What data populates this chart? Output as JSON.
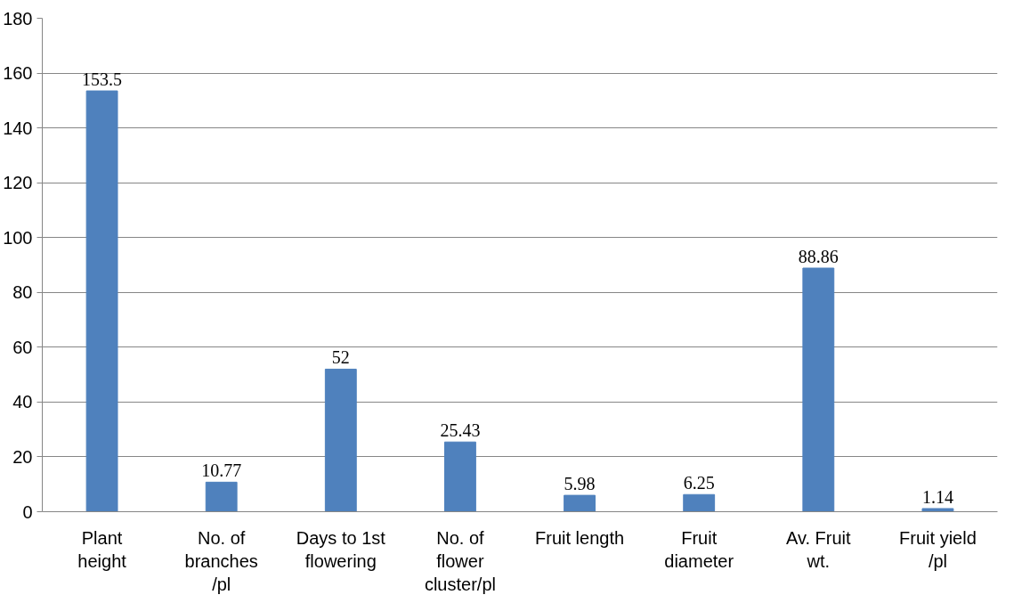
{
  "chart_data": {
    "type": "bar",
    "categories": [
      "Plant\nheight",
      "No. of\nbranches\n/pl",
      "Days to 1st\nflowering",
      "No. of\nflower\ncluster/pl",
      "Fruit length",
      "Fruit\ndiameter",
      "Av. Fruit\nwt.",
      "Fruit yield\n/pl"
    ],
    "values": [
      153.5,
      10.77,
      52,
      25.43,
      5.98,
      6.25,
      88.86,
      1.14
    ],
    "color": "#4f81bd",
    "ylim": [
      0,
      180
    ],
    "yticks": [
      0,
      20,
      40,
      60,
      80,
      100,
      120,
      140,
      160,
      180
    ],
    "grid": "y",
    "data_labels": true
  }
}
